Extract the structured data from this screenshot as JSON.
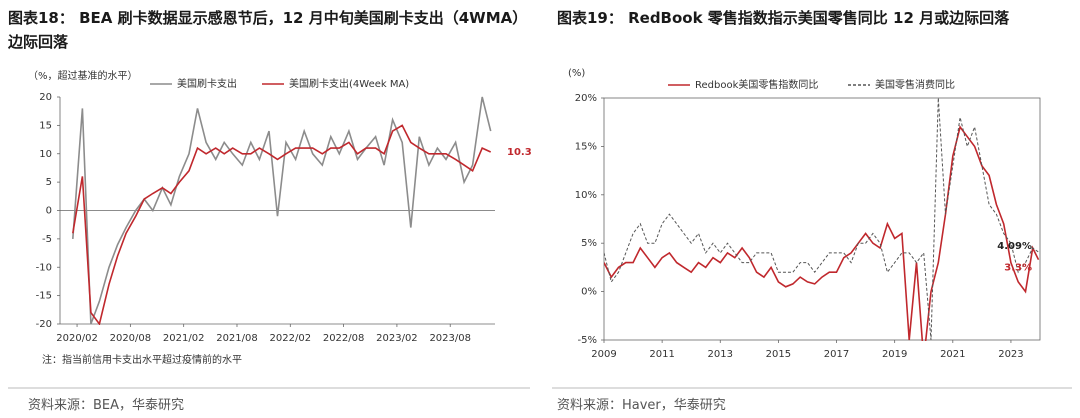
{
  "chart_data": [
    {
      "type": "line",
      "title": "图表18： BEA 刷卡数据显示感恩节后，12 月中旬美国刷卡支出（4WMA）边际回落",
      "y_label": "（%，超过基准的水平）",
      "x": [
        2020.04,
        2020.13,
        2020.21,
        2020.29,
        2020.38,
        2020.46,
        2020.54,
        2020.63,
        2020.71,
        2020.79,
        2020.88,
        2020.96,
        2021.04,
        2021.13,
        2021.21,
        2021.29,
        2021.38,
        2021.46,
        2021.54,
        2021.63,
        2021.71,
        2021.79,
        2021.88,
        2021.96,
        2022.04,
        2022.13,
        2022.21,
        2022.29,
        2022.38,
        2022.46,
        2022.54,
        2022.63,
        2022.71,
        2022.79,
        2022.88,
        2022.96,
        2023.04,
        2023.13,
        2023.21,
        2023.29,
        2023.38,
        2023.46,
        2023.54,
        2023.63,
        2023.71,
        2023.79,
        2023.88,
        2023.96
      ],
      "xlim": [
        2019.92,
        2024.0
      ],
      "xticks": [
        {
          "value": 2020.08,
          "label": "2020/02"
        },
        {
          "value": 2020.58,
          "label": "2020/08"
        },
        {
          "value": 2021.08,
          "label": "2021/02"
        },
        {
          "value": 2021.58,
          "label": "2021/08"
        },
        {
          "value": 2022.08,
          "label": "2022/02"
        },
        {
          "value": 2022.58,
          "label": "2022/08"
        },
        {
          "value": 2023.08,
          "label": "2023/02"
        },
        {
          "value": 2023.58,
          "label": "2023/08"
        }
      ],
      "ylim": [
        -20,
        20
      ],
      "yticks": [
        20,
        15,
        10,
        5,
        0,
        -5,
        -10,
        -15,
        -20
      ],
      "series": [
        {
          "name": "美国刷卡支出",
          "color": "#8c8c8c",
          "linestyle": "solid",
          "values": [
            -5,
            18,
            -20,
            -16,
            -10,
            -6,
            -3,
            0,
            2,
            0,
            4,
            1,
            6,
            10,
            18,
            12,
            9,
            12,
            10,
            8,
            12,
            9,
            14,
            -1,
            12,
            9,
            14,
            10,
            8,
            13,
            10,
            14,
            9,
            11,
            13,
            8,
            16,
            12,
            -3,
            13,
            8,
            11,
            9,
            12,
            5,
            8,
            20,
            14
          ]
        },
        {
          "name": "美国刷卡支出(4Week MA)",
          "color": "#c0282d",
          "linestyle": "solid",
          "values": [
            -4,
            6,
            -18,
            -20,
            -13,
            -8,
            -4,
            -1,
            2,
            3,
            4,
            3,
            5,
            7,
            11,
            10,
            11,
            10,
            11,
            10,
            10,
            11,
            10,
            9,
            10,
            11,
            11,
            11,
            10,
            11,
            11,
            12,
            10,
            11,
            11,
            10,
            14,
            15,
            12,
            11,
            10,
            10,
            10,
            9,
            8,
            7,
            11,
            10.3
          ]
        }
      ],
      "annotations": [
        "10.3"
      ],
      "note": "注：指当前信用卡支出水平超过疫情前的水平",
      "source": "资料来源：BEA，华泰研究"
    },
    {
      "type": "line",
      "title": "图表19： RedBook 零售指数指示美国零售同比 12 月或边际回落",
      "y_label": "(%)",
      "x": [
        2009,
        2009.25,
        2009.5,
        2009.75,
        2010,
        2010.25,
        2010.5,
        2010.75,
        2011,
        2011.25,
        2011.5,
        2011.75,
        2012,
        2012.25,
        2012.5,
        2012.75,
        2013,
        2013.25,
        2013.5,
        2013.75,
        2014,
        2014.25,
        2014.5,
        2014.75,
        2015,
        2015.25,
        2015.5,
        2015.75,
        2016,
        2016.25,
        2016.5,
        2016.75,
        2017,
        2017.25,
        2017.5,
        2017.75,
        2018,
        2018.25,
        2018.5,
        2018.75,
        2019,
        2019.25,
        2019.5,
        2019.75,
        2020,
        2020.25,
        2020.5,
        2020.75,
        2021,
        2021.25,
        2021.5,
        2021.75,
        2022,
        2022.25,
        2022.5,
        2022.75,
        2023,
        2023.25,
        2023.5,
        2023.75,
        2023.95
      ],
      "xlim": [
        2009,
        2024
      ],
      "xticks": [
        2009,
        2011,
        2013,
        2015,
        2017,
        2019,
        2021,
        2023
      ],
      "ylim": [
        -5,
        20
      ],
      "yticks": [
        {
          "value": 20,
          "label": "20%"
        },
        {
          "value": 15,
          "label": "15%"
        },
        {
          "value": 10,
          "label": "10%"
        },
        {
          "value": 5,
          "label": "5%"
        },
        {
          "value": 0,
          "label": "0%"
        },
        {
          "value": -5,
          "label": "-5%"
        }
      ],
      "series": [
        {
          "name": "Redbook美国零售指数同比",
          "color": "#c0282d",
          "linestyle": "solid",
          "values": [
            3,
            1.5,
            2.5,
            3,
            3,
            4.5,
            3.5,
            2.5,
            3.5,
            4,
            3,
            2.5,
            2,
            3,
            2.5,
            3.5,
            3,
            4,
            3.5,
            4.5,
            3.5,
            2,
            1.5,
            2.5,
            1,
            0.5,
            0.8,
            1.5,
            1,
            0.8,
            1.5,
            2,
            2,
            3.5,
            4,
            5,
            6,
            5,
            4.5,
            7,
            5.5,
            6,
            -5,
            3,
            -7,
            0,
            3,
            8,
            14,
            17,
            16,
            15,
            13,
            12,
            9,
            7,
            3,
            1,
            0,
            4.5,
            3.3
          ]
        },
        {
          "name": "美国零售消费同比",
          "color": "#555555",
          "linestyle": "dashed",
          "values": [
            4,
            1,
            2,
            4,
            6,
            7,
            5,
            5,
            7,
            8,
            7,
            6,
            5,
            6,
            4,
            5,
            4,
            5,
            4,
            3,
            3,
            4,
            4,
            4,
            2,
            2,
            2,
            3,
            3,
            2,
            3,
            4,
            4,
            4,
            3,
            5,
            5,
            6,
            5,
            2,
            3,
            4,
            4,
            3,
            4,
            -5,
            20,
            8,
            13,
            18,
            15,
            17,
            13,
            9,
            8,
            6,
            5,
            2,
            3,
            4.5,
            4.09
          ]
        }
      ],
      "annotations": [
        "4.09%",
        "3.3%"
      ],
      "source": "资料来源：Haver，华泰研究"
    }
  ]
}
